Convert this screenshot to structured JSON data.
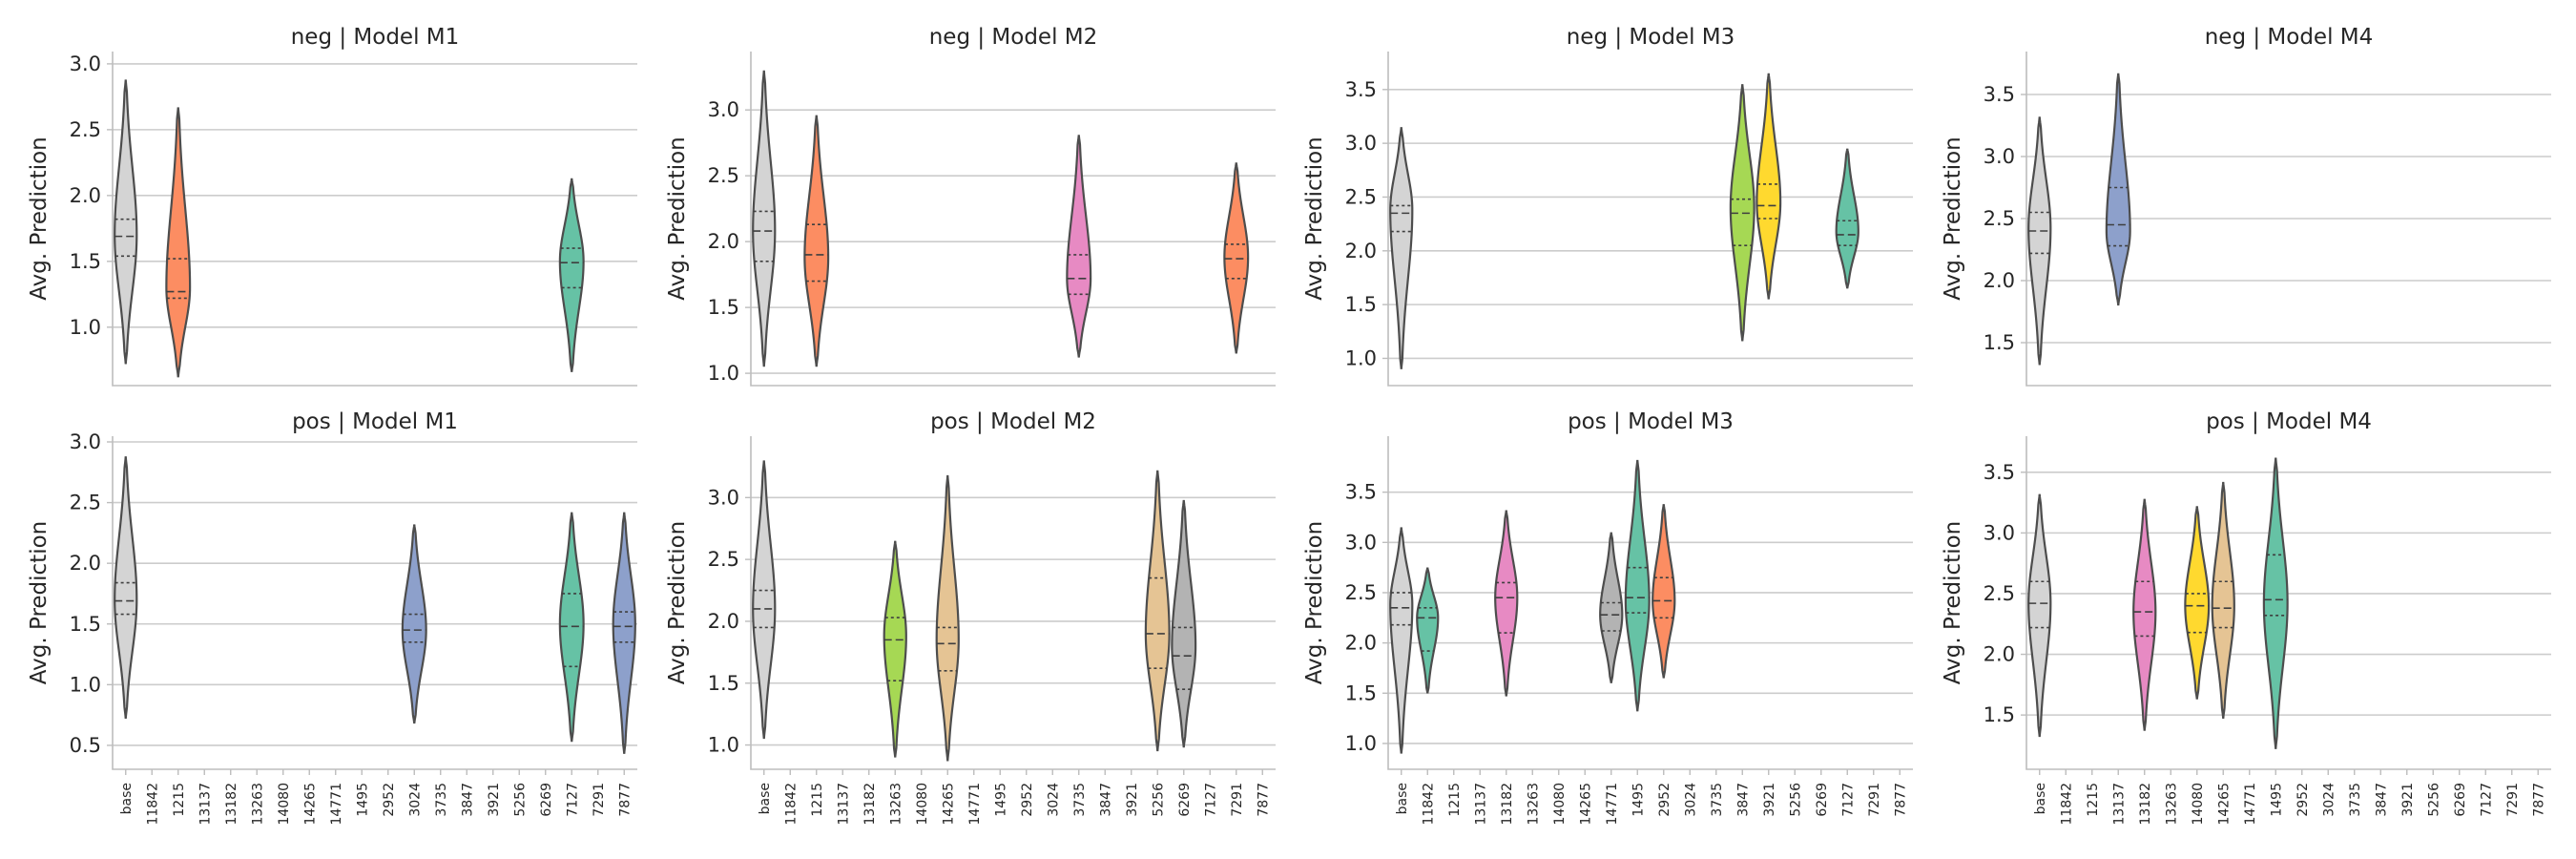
{
  "chart_data": {
    "type": "violin",
    "ylabel": "Avg. Prediction",
    "categories": [
      "base",
      "11842",
      "1215",
      "13137",
      "13182",
      "13263",
      "14080",
      "14265",
      "14771",
      "1495",
      "2952",
      "3024",
      "3735",
      "3847",
      "3921",
      "5256",
      "6269",
      "7127",
      "7291",
      "7877"
    ],
    "palette": {
      "base": "#d4d4d4",
      "11842": "#66c2a5",
      "1215": "#fc8d62",
      "13137": "#8da0cb",
      "13182": "#e78ac3",
      "13263": "#a6d854",
      "14080": "#ffd92f",
      "14265": "#e5c494",
      "14771": "#b3b3b3",
      "1495": "#66c2a5",
      "2952": "#fc8d62",
      "3024": "#8da0cb",
      "3735": "#e78ac3",
      "3847": "#a6d854",
      "3921": "#ffd92f",
      "5256": "#e5c494",
      "6269": "#b3b3b3",
      "7127": "#66c2a5",
      "7291": "#fc8d62",
      "7877": "#8da0cb"
    },
    "panels": [
      {
        "title": "neg | Model M1",
        "ylim": [
          0.6,
          3.05
        ],
        "yticks": [
          "1.0",
          "1.5",
          "2.0",
          "2.5",
          "3.0"
        ],
        "show_xticks": false,
        "violins": [
          {
            "category": "base",
            "min": 0.72,
            "q1": 1.54,
            "median": 1.69,
            "q3": 1.82,
            "max": 2.88,
            "mode": 1.7,
            "halfwidth": 0.42
          },
          {
            "category": "1215",
            "min": 0.62,
            "q1": 1.22,
            "median": 1.27,
            "q3": 1.52,
            "max": 2.67,
            "mode": 1.3,
            "halfwidth": 0.45
          },
          {
            "category": "7127",
            "min": 0.66,
            "q1": 1.3,
            "median": 1.49,
            "q3": 1.6,
            "max": 2.13,
            "mode": 1.5,
            "halfwidth": 0.45
          }
        ]
      },
      {
        "title": "neg | Model M2",
        "ylim": [
          0.95,
          3.4
        ],
        "yticks": [
          "1.0",
          "1.5",
          "2.0",
          "2.5",
          "3.0"
        ],
        "show_xticks": false,
        "violins": [
          {
            "category": "base",
            "min": 1.05,
            "q1": 1.85,
            "median": 2.08,
            "q3": 2.23,
            "max": 3.3,
            "mode": 2.08,
            "halfwidth": 0.42
          },
          {
            "category": "1215",
            "min": 1.05,
            "q1": 1.7,
            "median": 1.9,
            "q3": 2.13,
            "max": 2.96,
            "mode": 1.88,
            "halfwidth": 0.45
          },
          {
            "category": "3735",
            "min": 1.12,
            "q1": 1.6,
            "median": 1.72,
            "q3": 1.9,
            "max": 2.81,
            "mode": 1.72,
            "halfwidth": 0.45
          },
          {
            "category": "7291",
            "min": 1.15,
            "q1": 1.72,
            "median": 1.87,
            "q3": 1.98,
            "max": 2.6,
            "mode": 1.88,
            "halfwidth": 0.45
          }
        ]
      },
      {
        "title": "neg | Model M3",
        "ylim": [
          0.8,
          3.8
        ],
        "yticks": [
          "1.0",
          "1.5",
          "2.0",
          "2.5",
          "3.0",
          "3.5"
        ],
        "show_xticks": false,
        "violins": [
          {
            "category": "base",
            "min": 0.9,
            "q1": 2.18,
            "median": 2.35,
            "q3": 2.42,
            "max": 3.15,
            "mode": 2.38,
            "halfwidth": 0.42
          },
          {
            "category": "3847",
            "min": 1.16,
            "q1": 2.05,
            "median": 2.35,
            "q3": 2.48,
            "max": 3.55,
            "mode": 2.4,
            "halfwidth": 0.45
          },
          {
            "category": "3921",
            "min": 1.55,
            "q1": 2.3,
            "median": 2.42,
            "q3": 2.62,
            "max": 3.65,
            "mode": 2.45,
            "halfwidth": 0.45
          },
          {
            "category": "7127",
            "min": 1.65,
            "q1": 2.05,
            "median": 2.15,
            "q3": 2.28,
            "max": 2.95,
            "mode": 2.18,
            "halfwidth": 0.42
          }
        ]
      },
      {
        "title": "neg | Model M4",
        "ylim": [
          1.2,
          3.8
        ],
        "yticks": [
          "1.5",
          "2.0",
          "2.5",
          "3.0",
          "3.5"
        ],
        "show_xticks": false,
        "violins": [
          {
            "category": "base",
            "min": 1.32,
            "q1": 2.22,
            "median": 2.4,
            "q3": 2.55,
            "max": 3.32,
            "mode": 2.42,
            "halfwidth": 0.42
          },
          {
            "category": "13137",
            "min": 1.8,
            "q1": 2.28,
            "median": 2.45,
            "q3": 2.75,
            "max": 3.67,
            "mode": 2.4,
            "halfwidth": 0.45
          }
        ]
      }
    ],
    "panels_bottom": [
      {
        "title": "pos | Model M1",
        "ylim": [
          0.35,
          3.0
        ],
        "yticks": [
          "0.5",
          "1.0",
          "1.5",
          "2.0",
          "2.5",
          "3.0"
        ],
        "show_xticks": true,
        "violins": [
          {
            "category": "base",
            "min": 0.72,
            "q1": 1.58,
            "median": 1.69,
            "q3": 1.84,
            "max": 2.88,
            "mode": 1.7,
            "halfwidth": 0.42
          },
          {
            "category": "3024",
            "min": 0.68,
            "q1": 1.35,
            "median": 1.45,
            "q3": 1.58,
            "max": 2.32,
            "mode": 1.45,
            "halfwidth": 0.45
          },
          {
            "category": "7127",
            "min": 0.53,
            "q1": 1.15,
            "median": 1.48,
            "q3": 1.75,
            "max": 2.42,
            "mode": 1.5,
            "halfwidth": 0.45
          },
          {
            "category": "7877",
            "min": 0.43,
            "q1": 1.35,
            "median": 1.48,
            "q3": 1.6,
            "max": 2.42,
            "mode": 1.5,
            "halfwidth": 0.42
          }
        ]
      },
      {
        "title": "pos | Model M2",
        "ylim": [
          0.85,
          3.45
        ],
        "yticks": [
          "1.0",
          "1.5",
          "2.0",
          "2.5",
          "3.0"
        ],
        "show_xticks": true,
        "violins": [
          {
            "category": "base",
            "min": 1.05,
            "q1": 1.95,
            "median": 2.1,
            "q3": 2.25,
            "max": 3.3,
            "mode": 2.1,
            "halfwidth": 0.42
          },
          {
            "category": "13263",
            "min": 0.9,
            "q1": 1.52,
            "median": 1.85,
            "q3": 2.03,
            "max": 2.65,
            "mode": 1.88,
            "halfwidth": 0.42
          },
          {
            "category": "14265",
            "min": 0.87,
            "q1": 1.6,
            "median": 1.82,
            "q3": 1.95,
            "max": 3.18,
            "mode": 1.85,
            "halfwidth": 0.42
          },
          {
            "category": "5256",
            "min": 0.95,
            "q1": 1.62,
            "median": 1.9,
            "q3": 2.35,
            "max": 3.22,
            "mode": 1.9,
            "halfwidth": 0.45
          },
          {
            "category": "6269",
            "min": 0.98,
            "q1": 1.45,
            "median": 1.72,
            "q3": 1.95,
            "max": 2.98,
            "mode": 1.8,
            "halfwidth": 0.45
          }
        ]
      },
      {
        "title": "pos | Model M3",
        "ylim": [
          0.8,
          4.0
        ],
        "yticks": [
          "1.0",
          "1.5",
          "2.0",
          "2.5",
          "3.0",
          "3.5"
        ],
        "show_xticks": true,
        "violins": [
          {
            "category": "base",
            "min": 0.9,
            "q1": 2.18,
            "median": 2.35,
            "q3": 2.5,
            "max": 3.15,
            "mode": 2.38,
            "halfwidth": 0.42
          },
          {
            "category": "11842",
            "min": 1.5,
            "q1": 1.92,
            "median": 2.25,
            "q3": 2.35,
            "max": 2.75,
            "mode": 2.25,
            "halfwidth": 0.4
          },
          {
            "category": "13182",
            "min": 1.47,
            "q1": 2.1,
            "median": 2.45,
            "q3": 2.6,
            "max": 3.32,
            "mode": 2.45,
            "halfwidth": 0.42
          },
          {
            "category": "14771",
            "min": 1.6,
            "q1": 2.12,
            "median": 2.28,
            "q3": 2.4,
            "max": 3.1,
            "mode": 2.28,
            "halfwidth": 0.42
          },
          {
            "category": "1495",
            "min": 1.32,
            "q1": 2.3,
            "median": 2.45,
            "q3": 2.75,
            "max": 3.82,
            "mode": 2.42,
            "halfwidth": 0.45
          },
          {
            "category": "2952",
            "min": 1.65,
            "q1": 2.25,
            "median": 2.42,
            "q3": 2.65,
            "max": 3.38,
            "mode": 2.42,
            "halfwidth": 0.42
          }
        ]
      },
      {
        "title": "pos | Model M4",
        "ylim": [
          1.1,
          3.75
        ],
        "yticks": [
          "1.5",
          "2.0",
          "2.5",
          "3.0",
          "3.5"
        ],
        "show_xticks": true,
        "violins": [
          {
            "category": "base",
            "min": 1.32,
            "q1": 2.22,
            "median": 2.42,
            "q3": 2.6,
            "max": 3.32,
            "mode": 2.42,
            "halfwidth": 0.42
          },
          {
            "category": "13182",
            "min": 1.37,
            "q1": 2.15,
            "median": 2.35,
            "q3": 2.6,
            "max": 3.28,
            "mode": 2.35,
            "halfwidth": 0.42
          },
          {
            "category": "14080",
            "min": 1.63,
            "q1": 2.18,
            "median": 2.4,
            "q3": 2.5,
            "max": 3.22,
            "mode": 2.4,
            "halfwidth": 0.45
          },
          {
            "category": "14265",
            "min": 1.47,
            "q1": 2.22,
            "median": 2.38,
            "q3": 2.6,
            "max": 3.42,
            "mode": 2.4,
            "halfwidth": 0.42
          },
          {
            "category": "1495",
            "min": 1.22,
            "q1": 2.32,
            "median": 2.45,
            "q3": 2.82,
            "max": 3.62,
            "mode": 2.42,
            "halfwidth": 0.45
          }
        ]
      }
    ]
  }
}
